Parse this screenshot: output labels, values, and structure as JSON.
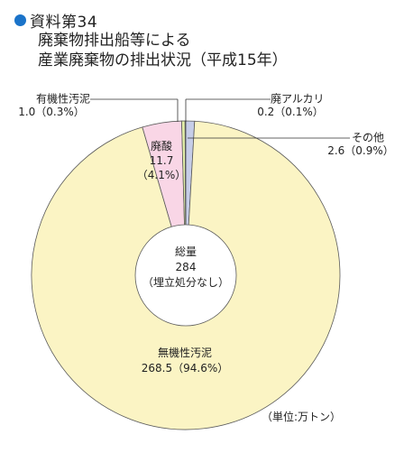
{
  "header": {
    "doc_label": "資料第34",
    "title_line1": "廃棄物排出船等による",
    "title_line2": "産業廃棄物の排出状況（平成15年）"
  },
  "unit_note": "（単位:万トン）",
  "colors": {
    "bullet": "#1a73c9",
    "stroke": "#5a5a5a"
  },
  "chart_data": {
    "type": "pie",
    "donut": true,
    "center_label": [
      "総量",
      "284",
      "（埋立処分なし）"
    ],
    "slices": [
      {
        "name": "無機性汚泥",
        "value": 268.5,
        "percent": "94.6%",
        "label_value": "268.5（94.6%）",
        "color": "#fbf4c4"
      },
      {
        "name": "廃酸",
        "value": 11.7,
        "percent": "4.1%",
        "label_value": "11.7",
        "label_percent": "（4.1%）",
        "color": "#f9d6e6"
      },
      {
        "name": "有機性汚泥",
        "value": 1.0,
        "percent": "0.3%",
        "label_value": "1.0（0.3%）",
        "color": "#e3efa8"
      },
      {
        "name": "廃アルカリ",
        "value": 0.2,
        "percent": "0.1%",
        "label_value": "0.2（0.1%）",
        "color": "#bfe3d6"
      },
      {
        "name": "その他",
        "value": 2.6,
        "percent": "0.9%",
        "label_value": "2.6（0.9%）",
        "color": "#c6cde8"
      }
    ]
  }
}
